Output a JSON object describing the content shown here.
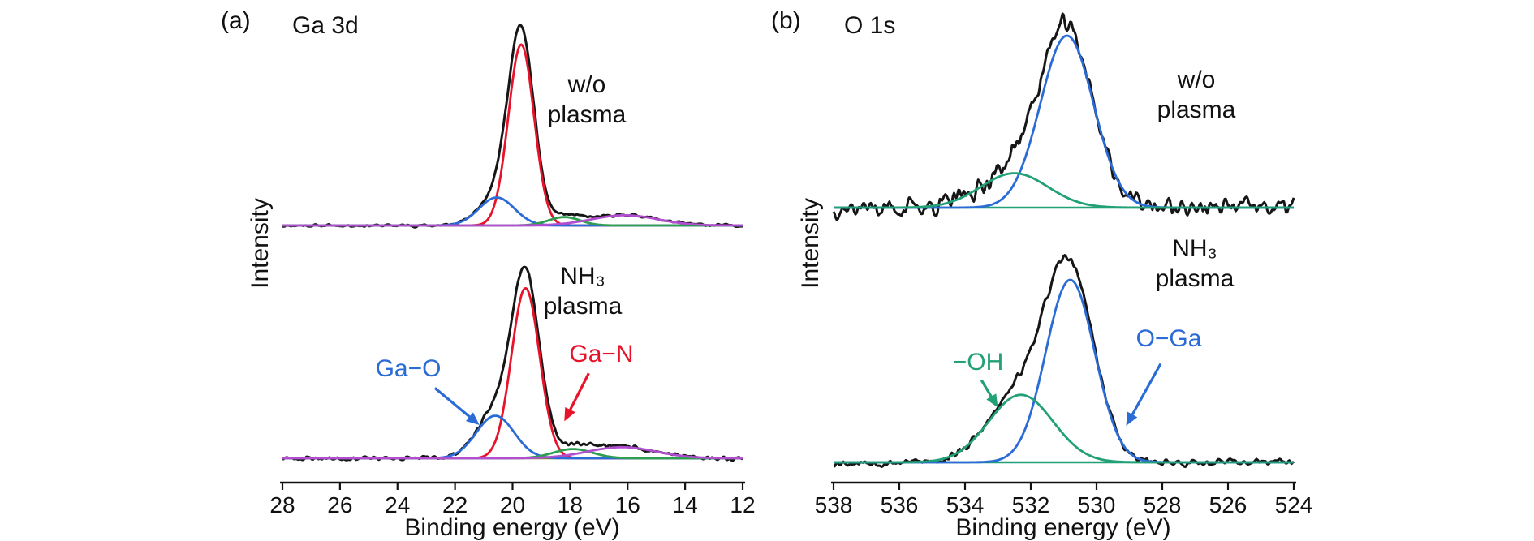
{
  "figure": {
    "background": "#ffffff"
  },
  "chart_data": [
    {
      "id": "a",
      "type": "line",
      "panel_label": "(a)",
      "title": "Ga 3d",
      "xlabel": "Binding energy (eV)",
      "ylabel": "Intensity",
      "x_range": [
        28,
        12
      ],
      "x_ticks": [
        28,
        26,
        24,
        22,
        20,
        18,
        16,
        14,
        12
      ],
      "x_axis_reversed": true,
      "x_unit": "eV",
      "spectra": [
        {
          "name": "w/o plasma",
          "label": "w/o\nplasma",
          "experimental_color": "#161616",
          "experimental_gain": 1.04,
          "noise": 0.006,
          "noise_seed": 11,
          "baseline_color": "#b14fd0",
          "components": [
            {
              "name": "Ga-N",
              "color": "#e8132a",
              "center": 19.7,
              "amplitude": 0.97,
              "fwhm": 1.05
            },
            {
              "name": "Ga-O",
              "color": "#2b6bd6",
              "center": 20.55,
              "amplitude": 0.15,
              "fwhm": 1.45
            },
            {
              "name": "minor-green",
              "color": "#2f9e50",
              "center": 18.2,
              "amplitude": 0.045,
              "fwhm": 1.3
            },
            {
              "name": "broad-violet",
              "color": "#b14fd0",
              "center": 16.1,
              "amplitude": 0.055,
              "fwhm": 2.7
            }
          ]
        },
        {
          "name": "NH3 plasma",
          "label": "NH₃\nplasma",
          "experimental_color": "#161616",
          "experimental_gain": 1.05,
          "noise": 0.01,
          "noise_seed": 23,
          "baseline_color": "#7a8c1e",
          "components": [
            {
              "name": "Ga-N",
              "color": "#e8132a",
              "center": 19.55,
              "amplitude": 0.92,
              "fwhm": 1.15
            },
            {
              "name": "Ga-O",
              "color": "#2b6bd6",
              "center": 20.6,
              "amplitude": 0.23,
              "fwhm": 1.55
            },
            {
              "name": "minor-green",
              "color": "#2f9e50",
              "center": 17.9,
              "amplitude": 0.05,
              "fwhm": 1.6
            },
            {
              "name": "broad-violet",
              "color": "#b14fd0",
              "center": 16.2,
              "amplitude": 0.06,
              "fwhm": 2.8
            }
          ]
        }
      ],
      "annotations": [
        {
          "text": "Ga−O",
          "color": "#2b6bd6",
          "spectrum": 1,
          "arrow_from": {
            "x": 22.7,
            "y": 0.38
          },
          "arrow_to": {
            "x": 21.15,
            "y": 0.18
          }
        },
        {
          "text": "Ga−N",
          "color": "#e8132a",
          "spectrum": 1,
          "arrow_from": {
            "x": 17.35,
            "y": 0.46
          },
          "arrow_to": {
            "x": 18.2,
            "y": 0.2
          }
        }
      ]
    },
    {
      "id": "b",
      "type": "line",
      "panel_label": "(b)",
      "title": "O 1s",
      "xlabel": "Binding energy (eV)",
      "ylabel": "Intensity",
      "x_range": [
        538,
        524
      ],
      "x_ticks": [
        538,
        536,
        534,
        532,
        530,
        528,
        526,
        524
      ],
      "x_axis_reversed": true,
      "x_unit": "eV",
      "spectra": [
        {
          "name": "w/o plasma",
          "label": "w/o\nplasma",
          "experimental_color": "#161616",
          "experimental_gain": 1.0,
          "noise": 0.05,
          "noise_seed": 37,
          "baseline_color": "#22a077",
          "components": [
            {
              "name": "O-Ga",
              "color": "#2b6bd6",
              "center": 530.9,
              "amplitude": 1.0,
              "fwhm": 1.9
            },
            {
              "name": "-OH",
              "color": "#22a077",
              "center": 532.5,
              "amplitude": 0.2,
              "fwhm": 2.4
            }
          ]
        },
        {
          "name": "NH3 plasma",
          "label": "NH₃\nplasma",
          "experimental_color": "#161616",
          "experimental_gain": 1.0,
          "noise": 0.018,
          "noise_seed": 53,
          "baseline_color": "#22a077",
          "components": [
            {
              "name": "O-Ga",
              "color": "#2b6bd6",
              "center": 530.8,
              "amplitude": 1.0,
              "fwhm": 1.75
            },
            {
              "name": "-OH",
              "color": "#22a077",
              "center": 532.3,
              "amplitude": 0.37,
              "fwhm": 2.3
            }
          ]
        }
      ],
      "annotations": [
        {
          "text": "−OH",
          "color": "#22a077",
          "spectrum": 1,
          "arrow_from": {
            "x": 533.5,
            "y": 0.45
          },
          "arrow_to": {
            "x": 533.0,
            "y": 0.3
          }
        },
        {
          "text": "O−Ga",
          "color": "#2b6bd6",
          "spectrum": 1,
          "arrow_from": {
            "x": 528.05,
            "y": 0.54
          },
          "arrow_to": {
            "x": 529.1,
            "y": 0.2
          }
        }
      ]
    }
  ]
}
